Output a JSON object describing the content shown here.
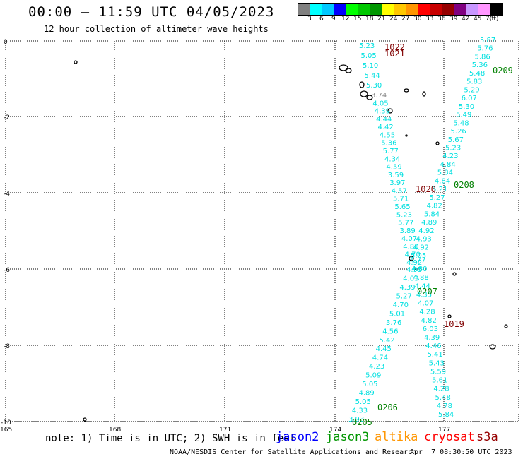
{
  "header": {
    "title": "00:00 – 11:59 UTC 04/05/2023",
    "subtitle": "12 hour collection of altimeter wave heights"
  },
  "color_scale": {
    "colors": [
      "#808080",
      "#00ffff",
      "#00c8ff",
      "#0000ff",
      "#00ff00",
      "#00c800",
      "#009600",
      "#ffff00",
      "#ffc800",
      "#ff9600",
      "#ff0000",
      "#c80000",
      "#960000",
      "#800080",
      "#c896ff",
      "#ff96ff",
      "#000000"
    ],
    "labels": [
      "3",
      "6",
      "9",
      "12",
      "15",
      "18",
      "21",
      "24",
      "27",
      "30",
      "33",
      "36",
      "39",
      "42",
      "45",
      "70",
      "(ft)"
    ]
  },
  "axes": {
    "lat_labels": [
      "0",
      "-2",
      "-4",
      "-6",
      "-8",
      "-10"
    ],
    "lon_labels": [
      "165",
      "168",
      "171",
      "174",
      "177"
    ]
  },
  "tracks": [
    {
      "type": "cryosat",
      "color": "#00e0e0",
      "values": [
        "5.23",
        "5.05",
        "5.10",
        "5.44",
        "5.30",
        "3.74",
        "4.05",
        "4.39",
        "4.44",
        "4.42",
        "4.55",
        "5.36",
        "5.77",
        "4.34",
        "4.59",
        "3.59",
        "3.97",
        "4.57",
        "5.71",
        "5.65",
        "5.23",
        "5.77",
        "3.89",
        "4.07",
        "4.80",
        "4.70",
        "4.92",
        "4.95",
        "4.03",
        "4.39",
        "5.27",
        "4.70",
        "5.01",
        "3.76",
        "4.56",
        "5.42",
        "4.45",
        "4.74",
        "4.23",
        "5.09",
        "5.05",
        "4.89",
        "5.05",
        "4.33",
        "3.93"
      ]
    },
    {
      "type": "cryosat",
      "color": "#00e0e0",
      "values": [
        "5.87",
        "5.76",
        "5.86",
        "5.36",
        "5.48",
        "5.83",
        "5.29",
        "6.07",
        "5.30",
        "5.49",
        "5.48",
        "5.26",
        "5.67",
        "5.23",
        "4.23",
        "4.84",
        "5.84",
        "4.84",
        "5.21",
        "5.27",
        "4.82",
        "5.84",
        "4.89",
        "4.92",
        "4.93",
        "4.92",
        "5.05",
        "4.77",
        "4.80",
        "4.88",
        "4.44",
        "4.35",
        "4.07",
        "4.28",
        "4.82",
        "6.03",
        "4.39",
        "4.46",
        "5.41",
        "5.43",
        "5.59",
        "5.61",
        "4.28",
        "5.48",
        "4.78",
        "5.84"
      ]
    }
  ],
  "time_labels": [
    {
      "text": "1022",
      "color": "#800000"
    },
    {
      "text": "1021",
      "color": "#800000"
    },
    {
      "text": "0209",
      "color": "#008000"
    },
    {
      "text": "1020",
      "color": "#800000"
    },
    {
      "text": "0208",
      "color": "#008000"
    },
    {
      "text": "0207",
      "color": "#008000"
    },
    {
      "text": "1019",
      "color": "#800000"
    },
    {
      "text": "0206",
      "color": "#008000"
    },
    {
      "text": "0205",
      "color": "#008000"
    }
  ],
  "footer": {
    "note": "note: 1) Time is in UTC; 2) SWH is in feet",
    "legend": [
      {
        "label": "jason2",
        "color": "#0000ff"
      },
      {
        "label": "jason3",
        "color": "#009600"
      },
      {
        "label": "altika",
        "color": "#ff9600"
      },
      {
        "label": "cryosat",
        "color": "#ff0000"
      },
      {
        "label": "s3a",
        "color": "#960000"
      }
    ],
    "credit": "NOAA/NESDIS Center for Satellite Applications and Research",
    "date": "Apr  7 08:30:50 UTC 2023"
  }
}
